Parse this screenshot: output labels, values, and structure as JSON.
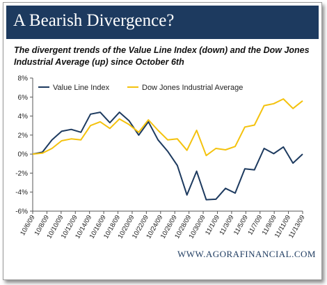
{
  "header": {
    "title": "A Bearish Divergence?"
  },
  "subtitle": "The divergent trends of the Value Line Index (down) and the Dow Jones Industrial Average (up) since October 6th",
  "footer": {
    "source": "WWW.AGORAFINANCIAL.COM"
  },
  "colors": {
    "header_bg": "#1d3a5f",
    "value_line": "#1d3a5f",
    "dow_jones": "#f4c20d"
  },
  "chart_data": {
    "type": "line",
    "title": "",
    "xlabel": "",
    "ylabel": "",
    "ylim": [
      -6,
      8
    ],
    "y_ticks": [
      -6,
      -4,
      -2,
      0,
      2,
      4,
      6,
      8
    ],
    "y_tick_labels": [
      "-6%",
      "-4%",
      "-2%",
      "0%",
      "2%",
      "4%",
      "6%",
      "8%"
    ],
    "y_tick_format": "percent",
    "grid": false,
    "legend": "top",
    "x": [
      "10/6/09",
      "10/7/09",
      "10/8/09",
      "10/9/09",
      "10/12/09",
      "10/13/09",
      "10/14/09",
      "10/15/09",
      "10/16/09",
      "10/19/09",
      "10/20/09",
      "10/21/09",
      "10/22/09",
      "10/23/09",
      "10/26/09",
      "10/27/09",
      "10/28/09",
      "10/29/09",
      "10/30/09",
      "11/2/09",
      "11/3/09",
      "11/4/09",
      "11/5/09",
      "11/6/09",
      "11/9/09",
      "11/10/09",
      "11/11/09",
      "11/12/09",
      "11/13/09"
    ],
    "x_tick_labels": [
      "10/6/09",
      "10/8/09",
      "10/10/09",
      "10/12/09",
      "10/14/09",
      "10/16/09",
      "10/18/09",
      "10/20/09",
      "10/22/09",
      "10/24/09",
      "10/26/09",
      "10/28/09",
      "10/30/09",
      "11/1/09",
      "11/3/09",
      "11/5/09",
      "11/7/09",
      "11/9/09",
      "11/11/09",
      "11/13/09"
    ],
    "series": [
      {
        "name": "Value Line Index",
        "color": "#1d3a5f",
        "values": [
          0.0,
          0.2,
          1.5,
          2.4,
          2.6,
          2.3,
          4.2,
          4.4,
          3.3,
          4.4,
          3.5,
          2.0,
          3.4,
          1.5,
          0.3,
          -1.2,
          -4.3,
          -1.8,
          -4.8,
          -4.75,
          -3.6,
          -4.1,
          -1.55,
          -1.65,
          0.6,
          0.05,
          0.75,
          -0.95,
          0.0
        ]
      },
      {
        "name": "Dow Jones Industrial Average",
        "color": "#f4c20d",
        "values": [
          0.0,
          0.1,
          0.6,
          1.4,
          1.6,
          1.5,
          3.0,
          3.4,
          2.7,
          3.7,
          3.1,
          2.3,
          3.6,
          2.5,
          1.5,
          1.6,
          0.4,
          2.5,
          -0.15,
          0.6,
          0.45,
          0.8,
          2.85,
          3.05,
          5.1,
          5.3,
          5.8,
          4.8,
          5.6
        ]
      }
    ]
  }
}
